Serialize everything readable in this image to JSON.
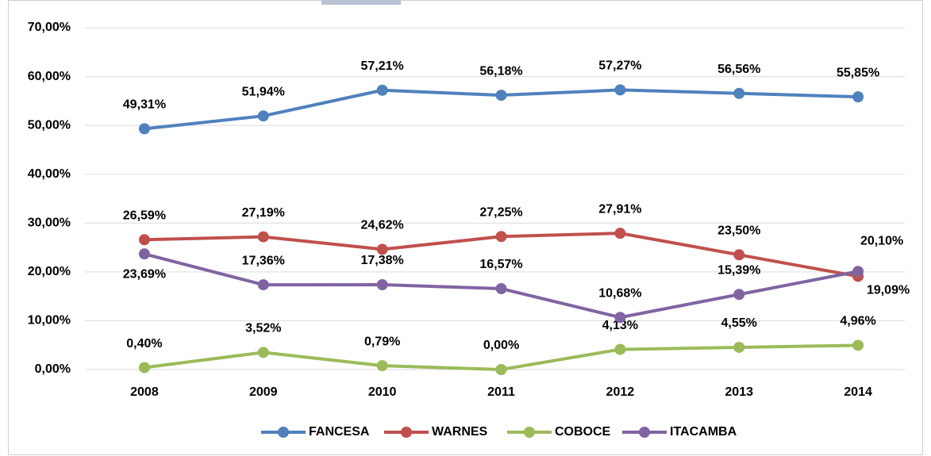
{
  "chart_data": {
    "type": "line",
    "categories": [
      "2008",
      "2009",
      "2010",
      "2011",
      "2012",
      "2013",
      "2014"
    ],
    "series": [
      {
        "name": "FANCESA",
        "color": "#4f81bd",
        "values": [
          49.31,
          51.94,
          57.21,
          56.18,
          57.27,
          56.56,
          55.85
        ],
        "value_labels": [
          "49,31%",
          "51,94%",
          "57,21%",
          "56,18%",
          "57,27%",
          "56,56%",
          "55,85%"
        ]
      },
      {
        "name": "WARNES",
        "color": "#c0504d",
        "values": [
          26.59,
          27.19,
          24.62,
          27.25,
          27.91,
          23.5,
          19.09
        ],
        "value_labels": [
          "26,59%",
          "27,19%",
          "24,62%",
          "27,25%",
          "27,91%",
          "23,50%",
          "19,09%"
        ]
      },
      {
        "name": "COBOCE",
        "color": "#9bbb59",
        "values": [
          0.4,
          3.52,
          0.79,
          0.0,
          4.13,
          4.55,
          4.96
        ],
        "value_labels": [
          "0,40%",
          "3,52%",
          "0,79%",
          "0,00%",
          "4,13%",
          "4,55%",
          "4,96%"
        ]
      },
      {
        "name": "ITACAMBA",
        "color": "#8064a2",
        "values": [
          23.69,
          17.36,
          17.38,
          16.57,
          10.68,
          15.39,
          20.1
        ],
        "value_labels": [
          "23,69%",
          "17,36%",
          "17,38%",
          "16,57%",
          "10,68%",
          "15,39%",
          "20,10%"
        ]
      }
    ],
    "ylim": [
      0,
      70
    ],
    "yticks": [
      {
        "value": 0,
        "label": "0,00%"
      },
      {
        "value": 10,
        "label": "10,00%"
      },
      {
        "value": 20,
        "label": "20,00%"
      },
      {
        "value": 30,
        "label": "30,00%"
      },
      {
        "value": 40,
        "label": "40,00%"
      },
      {
        "value": 50,
        "label": "50,00%"
      },
      {
        "value": 60,
        "label": "60,00%"
      },
      {
        "value": 70,
        "label": "70,00%"
      }
    ],
    "grid": true,
    "legend": "bottom"
  }
}
